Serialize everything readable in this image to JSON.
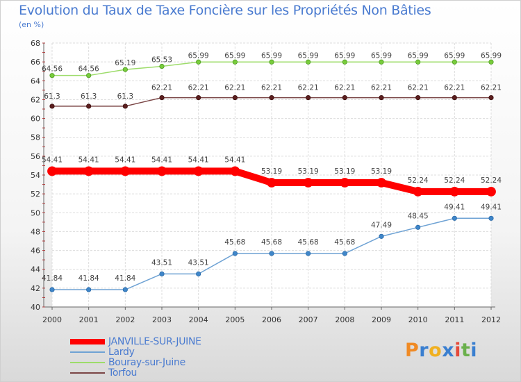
{
  "title": "Evolution du Taux de Taxe Foncière sur les Propriétés Non Bâties",
  "subtitle": "(en %)",
  "logo": {
    "letters": [
      {
        "char": "P",
        "color": "#f08a24"
      },
      {
        "char": "r",
        "color": "#3a7fd0"
      },
      {
        "char": "o",
        "color": "#f0b020"
      },
      {
        "char": "x",
        "color": "#3a7fd0"
      },
      {
        "char": "i",
        "color": "#e54a3a"
      },
      {
        "char": "t",
        "color": "#6ab04c"
      },
      {
        "char": "i",
        "color": "#3a7fd0"
      }
    ]
  },
  "chart_data": {
    "type": "line",
    "title": "Evolution du Taux de Taxe Foncière sur les Propriétés Non Bâties",
    "ylabel": "(en %)",
    "xlabel": "",
    "ylim": [
      40,
      68
    ],
    "yticks": [
      "40",
      "42",
      "44",
      "46",
      "48",
      "50",
      "52",
      "54",
      "56",
      "58",
      "60",
      "62",
      "64",
      "66",
      "68"
    ],
    "x": [
      "2000",
      "2001",
      "2002",
      "2003",
      "2004",
      "2005",
      "2006",
      "2007",
      "2008",
      "2009",
      "2010",
      "2011",
      "2012"
    ],
    "grid": true,
    "legend_position": "bottom-left",
    "series": [
      {
        "name": "JANVILLE-SUR-JUINE",
        "color": "#ff0000",
        "values": [
          54.41,
          54.41,
          54.41,
          54.41,
          54.41,
          54.41,
          53.19,
          53.19,
          53.19,
          53.19,
          52.24,
          52.24,
          52.24
        ]
      },
      {
        "name": "Lardy",
        "color": "#6ea2d4",
        "values": [
          41.84,
          41.84,
          41.84,
          43.51,
          43.51,
          45.68,
          45.68,
          45.68,
          45.68,
          47.49,
          48.45,
          49.41,
          49.41
        ]
      },
      {
        "name": "Bouray-sur-Juine",
        "color": "#9ddc6a",
        "values": [
          64.56,
          64.56,
          65.19,
          65.53,
          65.99,
          65.99,
          65.99,
          65.99,
          65.99,
          65.99,
          65.99,
          65.99,
          65.99
        ]
      },
      {
        "name": "Torfou",
        "color": "#7a4545",
        "values": [
          61.3,
          61.3,
          61.3,
          62.21,
          62.21,
          62.21,
          62.21,
          62.21,
          62.21,
          62.21,
          62.21,
          62.21,
          62.21
        ]
      }
    ],
    "data_labels": [
      [
        "54.41",
        "54.41",
        "54.41",
        "54.41",
        "54.41",
        "54.41",
        "53.19",
        "53.19",
        "53.19",
        "53.19",
        "52.24",
        "52.24",
        "52.24"
      ],
      [
        "41.84",
        "41.84",
        "41.84",
        "43.51",
        "43.51",
        "45.68",
        "45.68",
        "45.68",
        "45.68",
        "47.49",
        "48.45",
        "49.41",
        "49.41"
      ],
      [
        "64.56",
        "64.56",
        "65.19",
        "65.53",
        "65.99",
        "65.99",
        "65.99",
        "65.99",
        "65.99",
        "65.99",
        "65.99",
        "65.99",
        "65.99"
      ],
      [
        "61.3",
        "61.3",
        "61.3",
        "62.21",
        "62.21",
        "62.21",
        "62.21",
        "62.21",
        "62.21",
        "62.21",
        "62.21",
        "62.21",
        "62.21"
      ]
    ]
  }
}
